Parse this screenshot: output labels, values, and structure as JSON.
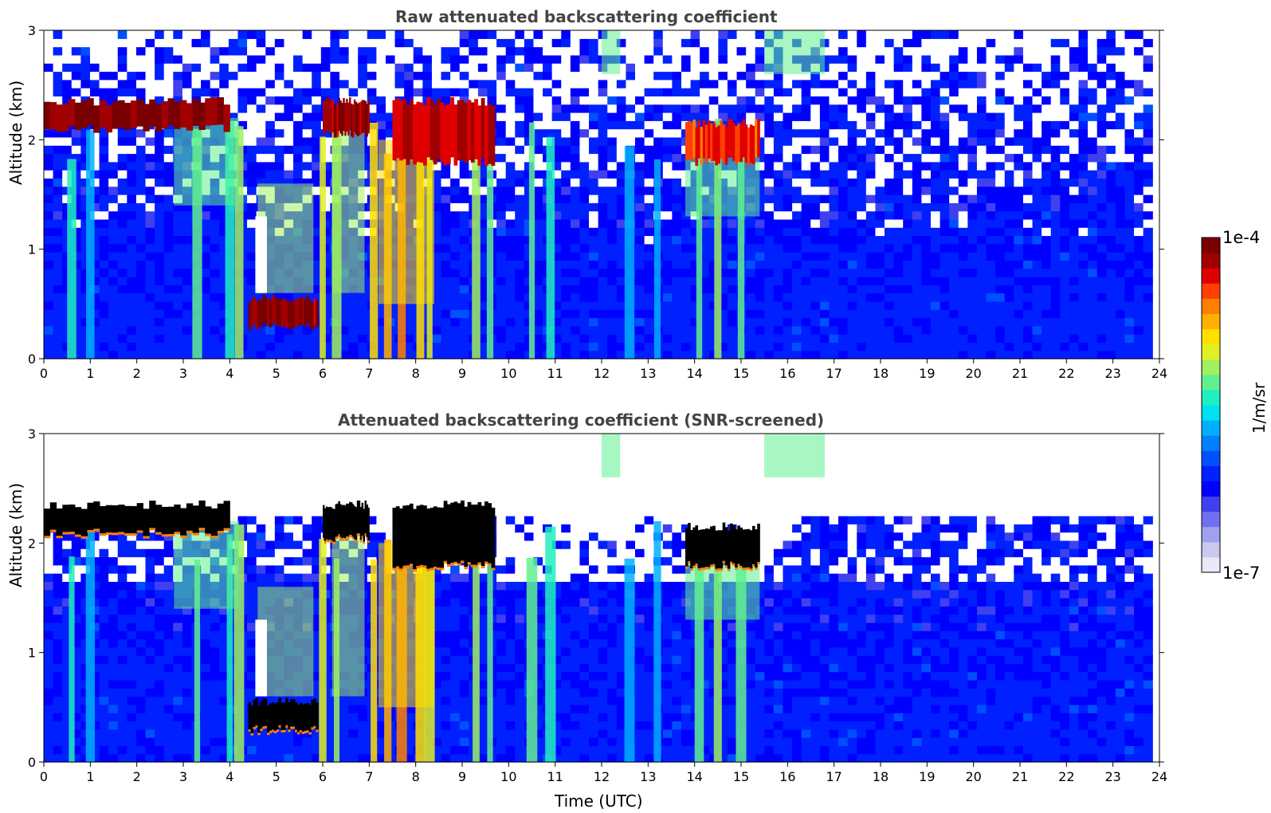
{
  "chart_data": [
    {
      "type": "heatmap",
      "title": "Raw attenuated backscattering coefficient",
      "xlabel": "",
      "ylabel": "Altitude (km)",
      "xlim": [
        0,
        24
      ],
      "ylim": [
        0,
        3
      ],
      "xticks": [
        "0",
        "1",
        "2",
        "3",
        "4",
        "5",
        "6",
        "7",
        "8",
        "9",
        "10",
        "11",
        "12",
        "13",
        "14",
        "15",
        "16",
        "17",
        "18",
        "19",
        "20",
        "21",
        "22",
        "23",
        "24"
      ],
      "yticks": [
        "0",
        "1",
        "2",
        "3"
      ],
      "colorscale": "jet",
      "layers": [
        {
          "desc": "cloud layer top",
          "x": [
            0,
            4
          ],
          "y": [
            2.1,
            2.35
          ],
          "level": 1.0
        },
        {
          "desc": "low cloud",
          "x": [
            4.4,
            5.9
          ],
          "y": [
            0.3,
            0.55
          ],
          "level": 1.0
        },
        {
          "desc": "cloud",
          "x": [
            6,
            7
          ],
          "y": [
            2.05,
            2.35
          ],
          "level": 1.0
        },
        {
          "desc": "scattered clouds",
          "x": [
            7.5,
            9.7
          ],
          "y": [
            1.8,
            2.35
          ],
          "level": 0.95
        },
        {
          "desc": "cloud",
          "x": [
            13.8,
            15.4
          ],
          "y": [
            1.8,
            2.15
          ],
          "level": 0.9
        }
      ]
    },
    {
      "type": "heatmap",
      "title": "Attenuated backscattering coefficient (SNR-screened)",
      "xlabel": "Time (UTC)",
      "ylabel": "Altitude (km)",
      "xlim": [
        0,
        24
      ],
      "ylim": [
        0,
        3
      ],
      "xticks": [
        "0",
        "1",
        "2",
        "3",
        "4",
        "5",
        "6",
        "7",
        "8",
        "9",
        "10",
        "11",
        "12",
        "13",
        "14",
        "15",
        "16",
        "17",
        "18",
        "19",
        "20",
        "21",
        "22",
        "23",
        "24"
      ],
      "yticks": [
        "0",
        "1",
        "2",
        "3"
      ],
      "colorscale": "jet",
      "saturated_color": "#000000",
      "layers": [
        {
          "desc": "cloud layer top",
          "x": [
            0,
            4
          ],
          "y": [
            2.1,
            2.35
          ],
          "level": 1.0
        },
        {
          "desc": "low cloud",
          "x": [
            4.4,
            5.9
          ],
          "y": [
            0.3,
            0.55
          ],
          "level": 1.0
        },
        {
          "desc": "cloud",
          "x": [
            6,
            7
          ],
          "y": [
            2.05,
            2.35
          ],
          "level": 1.0
        },
        {
          "desc": "scattered clouds",
          "x": [
            7.5,
            9.7
          ],
          "y": [
            1.8,
            2.35
          ],
          "level": 0.95
        },
        {
          "desc": "cloud",
          "x": [
            13.8,
            15.4
          ],
          "y": [
            1.8,
            2.15
          ],
          "level": 0.9
        }
      ]
    }
  ],
  "colorbar": {
    "label": "1/m/sr",
    "max_label": "1e-4",
    "min_label": "1e-7",
    "colors": [
      "#e8e8f8",
      "#c8c8f0",
      "#a0a0f0",
      "#7070f0",
      "#4040f0",
      "#0000ff",
      "#0020ff",
      "#0050ff",
      "#0080ff",
      "#00b0ff",
      "#00e0f0",
      "#20f0c0",
      "#60f090",
      "#a0f060",
      "#e0f020",
      "#ffe000",
      "#ffb000",
      "#ff8000",
      "#ff4000",
      "#e00000",
      "#a00000",
      "#7a0000"
    ]
  }
}
